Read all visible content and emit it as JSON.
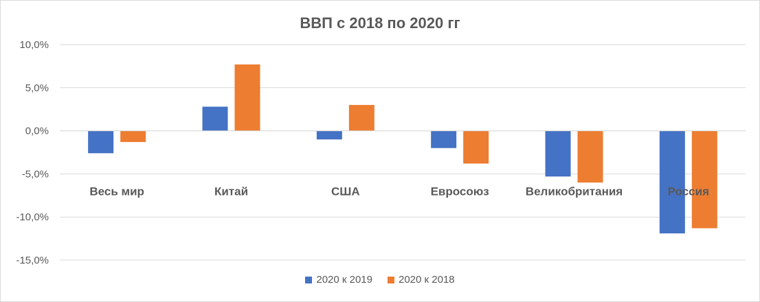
{
  "chart_data": {
    "type": "bar",
    "title": "ВВП с 2018 по 2020 гг",
    "categories": [
      "Весь мир",
      "Китай",
      "США",
      "Евросоюз",
      "Великобритания",
      "Россия"
    ],
    "series": [
      {
        "name": "2020 к 2019",
        "color": "#4472c4",
        "values": [
          -2.6,
          2.8,
          -1.0,
          -2.0,
          -5.3,
          -11.9
        ]
      },
      {
        "name": "2020 к 2018",
        "color": "#ed7d31",
        "values": [
          -1.3,
          7.7,
          3.0,
          -3.8,
          -6.0,
          -11.3
        ]
      }
    ],
    "yticks": [
      "10,0%",
      "5,0%",
      "0,0%",
      "-5,0%",
      "-10,0%",
      "-15,0%"
    ],
    "ylim": [
      -15,
      10
    ],
    "grid": true,
    "legend_position": "bottom"
  }
}
